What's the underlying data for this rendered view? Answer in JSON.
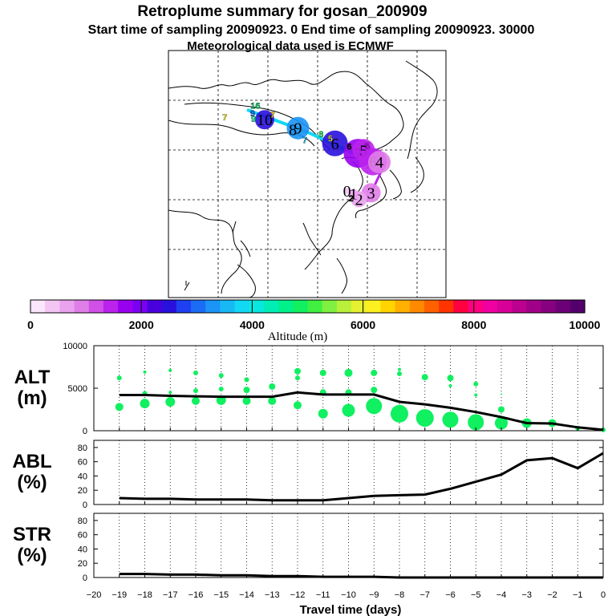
{
  "title": {
    "line1": "Retroplume summary for gosan_200909",
    "line2": "Start time of sampling 20090923.    0     End time of sampling 20090923. 30000",
    "line3": "Meteorological data used is ECMWF"
  },
  "colorbar": {
    "label": "Altitude (m)",
    "tick_labels": [
      "0",
      "2000",
      "4000",
      "6000",
      "8000",
      "10000"
    ],
    "colors": [
      "#fbe6fb",
      "#f3c5f3",
      "#eaa2ee",
      "#e07ee8",
      "#d050e8",
      "#bb22ec",
      "#9a00f0",
      "#7c00f4",
      "#4a00dd",
      "#2a10dc",
      "#1e40f0",
      "#1a6cf5",
      "#1a94f5",
      "#18b8f5",
      "#12d8f3",
      "#08e8de",
      "#00eeb6",
      "#00f08a",
      "#10f060",
      "#40f040",
      "#80f040",
      "#b8f03c",
      "#e6f030",
      "#fcf020",
      "#ffd400",
      "#ffb000",
      "#ff8a00",
      "#ff6000",
      "#ff3400",
      "#ff0040",
      "#ff0080",
      "#f000a0",
      "#d80098",
      "#bc0090",
      "#a00088",
      "#860080",
      "#6c0078",
      "#54006c"
    ]
  },
  "map": {
    "track": [
      {
        "lon": 117.0,
        "lat": 53.0
      },
      {
        "lon": 130.0,
        "lat": 48.5
      },
      {
        "lon": 140.5,
        "lat": 44.0
      },
      {
        "lon": 147.0,
        "lat": 42.5
      }
    ],
    "clusters": [
      {
        "label": "10",
        "lon": 120.8,
        "lat": 51.0,
        "size": 12,
        "color": "#2a10dc"
      },
      {
        "label": "9",
        "lon": 128.0,
        "lat": 49.3,
        "size": 14,
        "color": "#1a94f5"
      },
      {
        "label": "8",
        "lon": 126.9,
        "lat": 49.0,
        "size": 4,
        "color": "#1a94f5"
      },
      {
        "label": "6",
        "lon": 136.0,
        "lat": 46.2,
        "size": 16,
        "color": "#2a10dc"
      },
      {
        "label": "7",
        "lon": 141.0,
        "lat": 44.2,
        "size": 18,
        "color": "#9a00f0"
      },
      {
        "label": "5",
        "lon": 142.2,
        "lat": 44.8,
        "size": 14,
        "color": "#bb22ec"
      },
      {
        "label": "6",
        "lon": 144.2,
        "lat": 42.5,
        "size": 17,
        "color": "#bb22ec"
      },
      {
        "label": "4",
        "lon": 145.6,
        "lat": 42.4,
        "size": 14,
        "color": "#e07ee8"
      },
      {
        "label": "3",
        "lon": 143.8,
        "lat": 36.2,
        "size": 12,
        "color": "#e07ee8"
      },
      {
        "label": "2",
        "lon": 141.2,
        "lat": 34.9,
        "size": 10,
        "color": "#eaa2ee"
      },
      {
        "label": "1",
        "lon": 140.0,
        "lat": 36.0,
        "size": 6,
        "color": "#eaa2ee"
      },
      {
        "label": "0",
        "lon": 138.6,
        "lat": 36.6,
        "size": 4,
        "color": "#f3c5f3"
      }
    ],
    "markers": [
      {
        "label": "16",
        "lon": 118.8,
        "lat": 53.9,
        "color": "#00d060"
      },
      {
        "label": "9",
        "lon": 118.2,
        "lat": 52.3,
        "color": "#0060ff"
      },
      {
        "label": "9",
        "lon": 118.4,
        "lat": 51.2,
        "color": "#00f08a"
      },
      {
        "label": "7",
        "lon": 112.2,
        "lat": 51.5,
        "color": "#fcf020"
      },
      {
        "label": "7",
        "lon": 122.5,
        "lat": 52.0,
        "color": "#ffd400"
      },
      {
        "label": "7",
        "lon": 129.5,
        "lat": 46.9,
        "color": "#18b8f5"
      },
      {
        "label": "8",
        "lon": 133.0,
        "lat": 48.1,
        "color": "#10f060"
      },
      {
        "label": "5",
        "lon": 135.0,
        "lat": 47.2,
        "color": "#e6f030"
      },
      {
        "label": "6",
        "lon": 139.1,
        "lat": 45.6,
        "color": "#000000"
      },
      {
        "label": "5",
        "lon": 143.0,
        "lat": 45.8,
        "color": "#bb22ec"
      },
      {
        "label": "2",
        "lon": 139.5,
        "lat": 35.1,
        "color": "#000000"
      }
    ]
  },
  "chart_data": [
    {
      "type": "line",
      "name": "ALT",
      "ylabel": "ALT\n(m)",
      "ylim": [
        0,
        10000
      ],
      "yticks": [
        0,
        5000,
        10000
      ],
      "x": [
        -19,
        -18,
        -17,
        -16,
        -15,
        -14,
        -13,
        -12,
        -11,
        -10,
        -9,
        -8,
        -7,
        -6,
        -5,
        -4,
        -3,
        -2,
        -1,
        0
      ],
      "values": [
        4200,
        4200,
        4100,
        4050,
        4000,
        4000,
        4000,
        4500,
        4250,
        4250,
        4250,
        3400,
        3100,
        2700,
        2200,
        1600,
        900,
        850,
        400,
        100
      ],
      "scatter": [
        {
          "x": -19,
          "y": 6200,
          "size": 3
        },
        {
          "x": -19,
          "y": 2800,
          "size": 5
        },
        {
          "x": -18,
          "y": 6900,
          "size": 2
        },
        {
          "x": -18,
          "y": 4400,
          "size": 3
        },
        {
          "x": -18,
          "y": 3200,
          "size": 6
        },
        {
          "x": -17,
          "y": 7100,
          "size": 2
        },
        {
          "x": -17,
          "y": 4500,
          "size": 2
        },
        {
          "x": -17,
          "y": 3400,
          "size": 6
        },
        {
          "x": -16,
          "y": 6800,
          "size": 3
        },
        {
          "x": -16,
          "y": 4700,
          "size": 3
        },
        {
          "x": -16,
          "y": 3500,
          "size": 5
        },
        {
          "x": -15,
          "y": 6500,
          "size": 3
        },
        {
          "x": -15,
          "y": 4900,
          "size": 3
        },
        {
          "x": -15,
          "y": 3600,
          "size": 6
        },
        {
          "x": -14,
          "y": 6000,
          "size": 3
        },
        {
          "x": -14,
          "y": 4800,
          "size": 4
        },
        {
          "x": -14,
          "y": 3500,
          "size": 5
        },
        {
          "x": -13,
          "y": 5200,
          "size": 4
        },
        {
          "x": -13,
          "y": 3500,
          "size": 5
        },
        {
          "x": -12,
          "y": 7000,
          "size": 4
        },
        {
          "x": -12,
          "y": 6200,
          "size": 3
        },
        {
          "x": -12,
          "y": 3000,
          "size": 5
        },
        {
          "x": -11,
          "y": 6800,
          "size": 4
        },
        {
          "x": -11,
          "y": 4500,
          "size": 4
        },
        {
          "x": -11,
          "y": 2000,
          "size": 6
        },
        {
          "x": -10,
          "y": 6800,
          "size": 5
        },
        {
          "x": -10,
          "y": 4500,
          "size": 4
        },
        {
          "x": -10,
          "y": 2400,
          "size": 8
        },
        {
          "x": -9,
          "y": 6800,
          "size": 4
        },
        {
          "x": -9,
          "y": 4800,
          "size": 4
        },
        {
          "x": -9,
          "y": 2900,
          "size": 10
        },
        {
          "x": -8,
          "y": 7200,
          "size": 2
        },
        {
          "x": -8,
          "y": 6700,
          "size": 3
        },
        {
          "x": -8,
          "y": 2000,
          "size": 11
        },
        {
          "x": -7,
          "y": 6300,
          "size": 4
        },
        {
          "x": -7,
          "y": 1500,
          "size": 11
        },
        {
          "x": -6,
          "y": 6200,
          "size": 4
        },
        {
          "x": -6,
          "y": 5300,
          "size": 2
        },
        {
          "x": -6,
          "y": 1300,
          "size": 10
        },
        {
          "x": -5,
          "y": 5500,
          "size": 3
        },
        {
          "x": -5,
          "y": 4200,
          "size": 2
        },
        {
          "x": -5,
          "y": 1000,
          "size": 10
        },
        {
          "x": -4,
          "y": 4300,
          "size": 1
        },
        {
          "x": -4,
          "y": 2500,
          "size": 4
        },
        {
          "x": -4,
          "y": 900,
          "size": 8
        },
        {
          "x": -3,
          "y": 900,
          "size": 6
        },
        {
          "x": -2,
          "y": 900,
          "size": 5
        },
        {
          "x": -1,
          "y": 300,
          "size": 3
        },
        {
          "x": 0,
          "y": 100,
          "size": 3
        }
      ]
    },
    {
      "type": "line",
      "name": "ABL",
      "ylabel": "ABL\n(%)",
      "ylim": [
        0,
        90
      ],
      "yticks": [
        0,
        20,
        40,
        60,
        80
      ],
      "x": [
        -19,
        -18,
        -17,
        -16,
        -15,
        -14,
        -13,
        -12,
        -11,
        -10,
        -9,
        -8,
        -7,
        -6,
        -5,
        -4,
        -3,
        -2,
        -1,
        0
      ],
      "values": [
        9,
        8,
        8,
        7,
        7,
        7,
        6,
        6,
        6,
        9,
        12,
        13,
        14,
        22,
        32,
        42,
        62,
        65,
        51,
        72
      ]
    },
    {
      "type": "line",
      "name": "STR",
      "ylabel": "STR\n(%)",
      "ylim": [
        0,
        90
      ],
      "yticks": [
        0,
        20,
        40,
        60,
        80
      ],
      "x": [
        -19,
        -18,
        -17,
        -16,
        -15,
        -14,
        -13,
        -12,
        -11,
        -10,
        -9,
        -8,
        -7,
        -6,
        -5,
        -4,
        -3,
        -2,
        -1,
        0
      ],
      "values": [
        5,
        5,
        4,
        4,
        3,
        3,
        2,
        2,
        1,
        1,
        1,
        0,
        0,
        0,
        0,
        0,
        0,
        0,
        0,
        0
      ]
    }
  ],
  "xaxis": {
    "label": "Travel time (days)",
    "tick_labels": [
      "-20",
      "-19",
      "-18",
      "-17",
      "-16",
      "-15",
      "-14",
      "-13",
      "-12",
      "-11",
      "-10",
      "-9",
      "-8",
      "-7",
      "-6",
      "-5",
      "-4",
      "-3",
      "-2",
      "-1",
      "0"
    ],
    "range": [
      -20,
      0
    ]
  },
  "colors": {
    "line": "#000000",
    "scatter": "#10f060",
    "track": "#12d8f3",
    "track_tail": "#bb22ec"
  }
}
